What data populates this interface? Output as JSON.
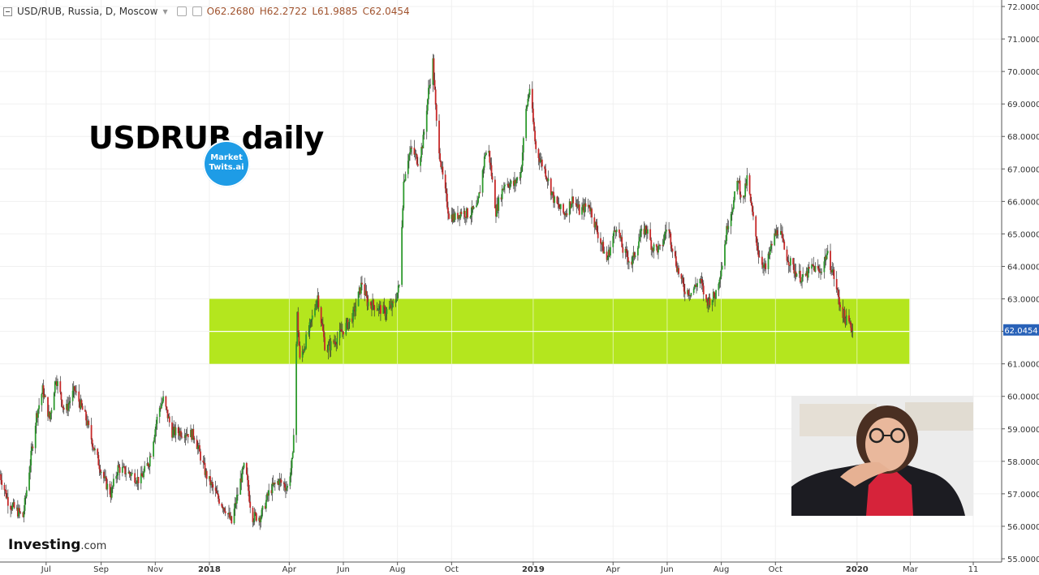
{
  "header": {
    "symbol": "USD/RUB, Russia, D, Moscow",
    "open": "O62.2680",
    "high": "H62.2722",
    "low": "L61.9885",
    "close": "C62.0454"
  },
  "overlay_title": "USDRUB daily",
  "logo_text": [
    "Market",
    "Twits.ai"
  ],
  "brand": {
    "name": "Investing",
    "domain": ".com"
  },
  "colors": {
    "up": "#2e9a2e",
    "down": "#c62828",
    "zone": "#b4e61e",
    "price_label_bg": "#2962b8",
    "logo": "#1e9ce6"
  },
  "chart_data": {
    "type": "candlestick",
    "title": "USDRUB daily",
    "xlabel": "",
    "ylabel": "",
    "ylim": [
      54.9,
      72.2
    ],
    "y_ticks": [
      "72.0000",
      "71.0000",
      "70.0000",
      "69.0000",
      "68.0000",
      "67.0000",
      "66.0000",
      "65.0000",
      "64.0000",
      "63.0000",
      "62.0000",
      "61.0000",
      "60.0000",
      "59.0000",
      "58.0000",
      "57.0000",
      "56.0000",
      "55.0000"
    ],
    "x_ticks": [
      {
        "label": "Jul",
        "date": "2017-07-01"
      },
      {
        "label": "Sep",
        "date": "2017-09-01"
      },
      {
        "label": "Nov",
        "date": "2017-11-01"
      },
      {
        "label": "2018",
        "date": "2018-01-01",
        "bold": true
      },
      {
        "label": "Apr",
        "date": "2018-04-01"
      },
      {
        "label": "Jun",
        "date": "2018-06-01"
      },
      {
        "label": "Aug",
        "date": "2018-08-01"
      },
      {
        "label": "Oct",
        "date": "2018-10-01"
      },
      {
        "label": "2019",
        "date": "2019-01-01",
        "bold": true
      },
      {
        "label": "Apr",
        "date": "2019-04-01"
      },
      {
        "label": "Jun",
        "date": "2019-06-01"
      },
      {
        "label": "Aug",
        "date": "2019-08-01"
      },
      {
        "label": "Oct",
        "date": "2019-10-01"
      },
      {
        "label": "2020",
        "date": "2020-01-01",
        "bold": true
      },
      {
        "label": "Mar",
        "date": "2020-03-01"
      },
      {
        "label": "11",
        "date": "2020-05-11"
      }
    ],
    "x_range": [
      "2017-05-10",
      "2020-06-12"
    ],
    "grid": true,
    "last_price": 62.0454,
    "last_price_label": "62.0454",
    "support_zone": {
      "from_date": "2018-01-01",
      "to_date": "2020-02-29",
      "low": 61.0,
      "high": 63.0,
      "mid": 62.0
    },
    "series": [
      {
        "name": "USD/RUB",
        "keypoints": [
          [
            "2017-05-10",
            57.6
          ],
          [
            "2017-05-20",
            56.7
          ],
          [
            "2017-06-05",
            56.3
          ],
          [
            "2017-06-20",
            59.4
          ],
          [
            "2017-06-27",
            60.2
          ],
          [
            "2017-07-05",
            59.3
          ],
          [
            "2017-07-12",
            60.6
          ],
          [
            "2017-07-22",
            59.5
          ],
          [
            "2017-08-02",
            60.2
          ],
          [
            "2017-08-15",
            59.3
          ],
          [
            "2017-08-25",
            58.3
          ],
          [
            "2017-09-05",
            57.4
          ],
          [
            "2017-09-12",
            57.0
          ],
          [
            "2017-09-20",
            57.8
          ],
          [
            "2017-10-05",
            57.6
          ],
          [
            "2017-10-15",
            57.4
          ],
          [
            "2017-10-25",
            58.0
          ],
          [
            "2017-11-05",
            59.6
          ],
          [
            "2017-11-10",
            59.9
          ],
          [
            "2017-11-20",
            58.9
          ],
          [
            "2017-12-05",
            58.9
          ],
          [
            "2017-12-15",
            58.8
          ],
          [
            "2017-12-28",
            57.6
          ],
          [
            "2018-01-10",
            56.9
          ],
          [
            "2018-01-20",
            56.5
          ],
          [
            "2018-01-26",
            56.1
          ],
          [
            "2018-02-05",
            57.4
          ],
          [
            "2018-02-10",
            57.9
          ],
          [
            "2018-02-18",
            56.3
          ],
          [
            "2018-02-28",
            56.3
          ],
          [
            "2018-03-10",
            57.1
          ],
          [
            "2018-03-20",
            57.4
          ],
          [
            "2018-03-30",
            57.2
          ],
          [
            "2018-04-05",
            58.1
          ],
          [
            "2018-04-10",
            62.5
          ],
          [
            "2018-04-13",
            61.1
          ],
          [
            "2018-04-25",
            62.2
          ],
          [
            "2018-05-03",
            63.1
          ],
          [
            "2018-05-12",
            61.4
          ],
          [
            "2018-05-25",
            61.8
          ],
          [
            "2018-06-05",
            62.2
          ],
          [
            "2018-06-12",
            62.5
          ],
          [
            "2018-06-22",
            63.5
          ],
          [
            "2018-06-28",
            62.9
          ],
          [
            "2018-07-06",
            62.8
          ],
          [
            "2018-07-18",
            62.6
          ],
          [
            "2018-07-28",
            62.8
          ],
          [
            "2018-08-03",
            63.4
          ],
          [
            "2018-08-08",
            66.6
          ],
          [
            "2018-08-12",
            67.3
          ],
          [
            "2018-08-17",
            67.6
          ],
          [
            "2018-08-25",
            67.2
          ],
          [
            "2018-08-30",
            67.9
          ],
          [
            "2018-09-05",
            69.4
          ],
          [
            "2018-09-10",
            70.3
          ],
          [
            "2018-09-14",
            68.4
          ],
          [
            "2018-09-20",
            66.9
          ],
          [
            "2018-09-28",
            65.6
          ],
          [
            "2018-10-05",
            65.5
          ],
          [
            "2018-10-12",
            65.7
          ],
          [
            "2018-10-20",
            65.6
          ],
          [
            "2018-10-30",
            65.8
          ],
          [
            "2018-11-08",
            67.5
          ],
          [
            "2018-11-12",
            67.5
          ],
          [
            "2018-11-20",
            65.7
          ],
          [
            "2018-11-30",
            66.6
          ],
          [
            "2018-12-10",
            66.5
          ],
          [
            "2018-12-18",
            66.9
          ],
          [
            "2018-12-24",
            68.8
          ],
          [
            "2018-12-28",
            69.5
          ],
          [
            "2019-01-04",
            67.6
          ],
          [
            "2019-01-15",
            66.9
          ],
          [
            "2019-01-25",
            66.0
          ],
          [
            "2019-02-05",
            65.6
          ],
          [
            "2019-02-15",
            66.1
          ],
          [
            "2019-02-22",
            65.7
          ],
          [
            "2019-03-05",
            65.9
          ],
          [
            "2019-03-15",
            65.0
          ],
          [
            "2019-03-25",
            64.2
          ],
          [
            "2019-04-05",
            65.3
          ],
          [
            "2019-04-12",
            64.5
          ],
          [
            "2019-04-22",
            64.1
          ],
          [
            "2019-05-01",
            64.9
          ],
          [
            "2019-05-08",
            65.2
          ],
          [
            "2019-05-15",
            64.6
          ],
          [
            "2019-05-25",
            64.5
          ],
          [
            "2019-06-01",
            65.3
          ],
          [
            "2019-06-12",
            64.0
          ],
          [
            "2019-06-20",
            63.3
          ],
          [
            "2019-06-28",
            63.2
          ],
          [
            "2019-07-08",
            63.6
          ],
          [
            "2019-07-15",
            62.9
          ],
          [
            "2019-07-25",
            63.1
          ],
          [
            "2019-08-02",
            64.1
          ],
          [
            "2019-08-08",
            65.3
          ],
          [
            "2019-08-15",
            66.0
          ],
          [
            "2019-08-20",
            66.7
          ],
          [
            "2019-08-25",
            65.9
          ],
          [
            "2019-08-30",
            66.7
          ],
          [
            "2019-09-05",
            65.6
          ],
          [
            "2019-09-12",
            64.4
          ],
          [
            "2019-09-20",
            63.9
          ],
          [
            "2019-09-28",
            64.8
          ],
          [
            "2019-10-05",
            65.2
          ],
          [
            "2019-10-12",
            64.4
          ],
          [
            "2019-10-22",
            63.9
          ],
          [
            "2019-11-01",
            63.6
          ],
          [
            "2019-11-12",
            64.0
          ],
          [
            "2019-11-20",
            63.8
          ],
          [
            "2019-11-28",
            64.4
          ],
          [
            "2019-12-05",
            63.8
          ],
          [
            "2019-12-12",
            62.9
          ],
          [
            "2019-12-18",
            62.4
          ],
          [
            "2019-12-24",
            62.2
          ],
          [
            "2019-12-27",
            62.05
          ]
        ]
      }
    ]
  }
}
